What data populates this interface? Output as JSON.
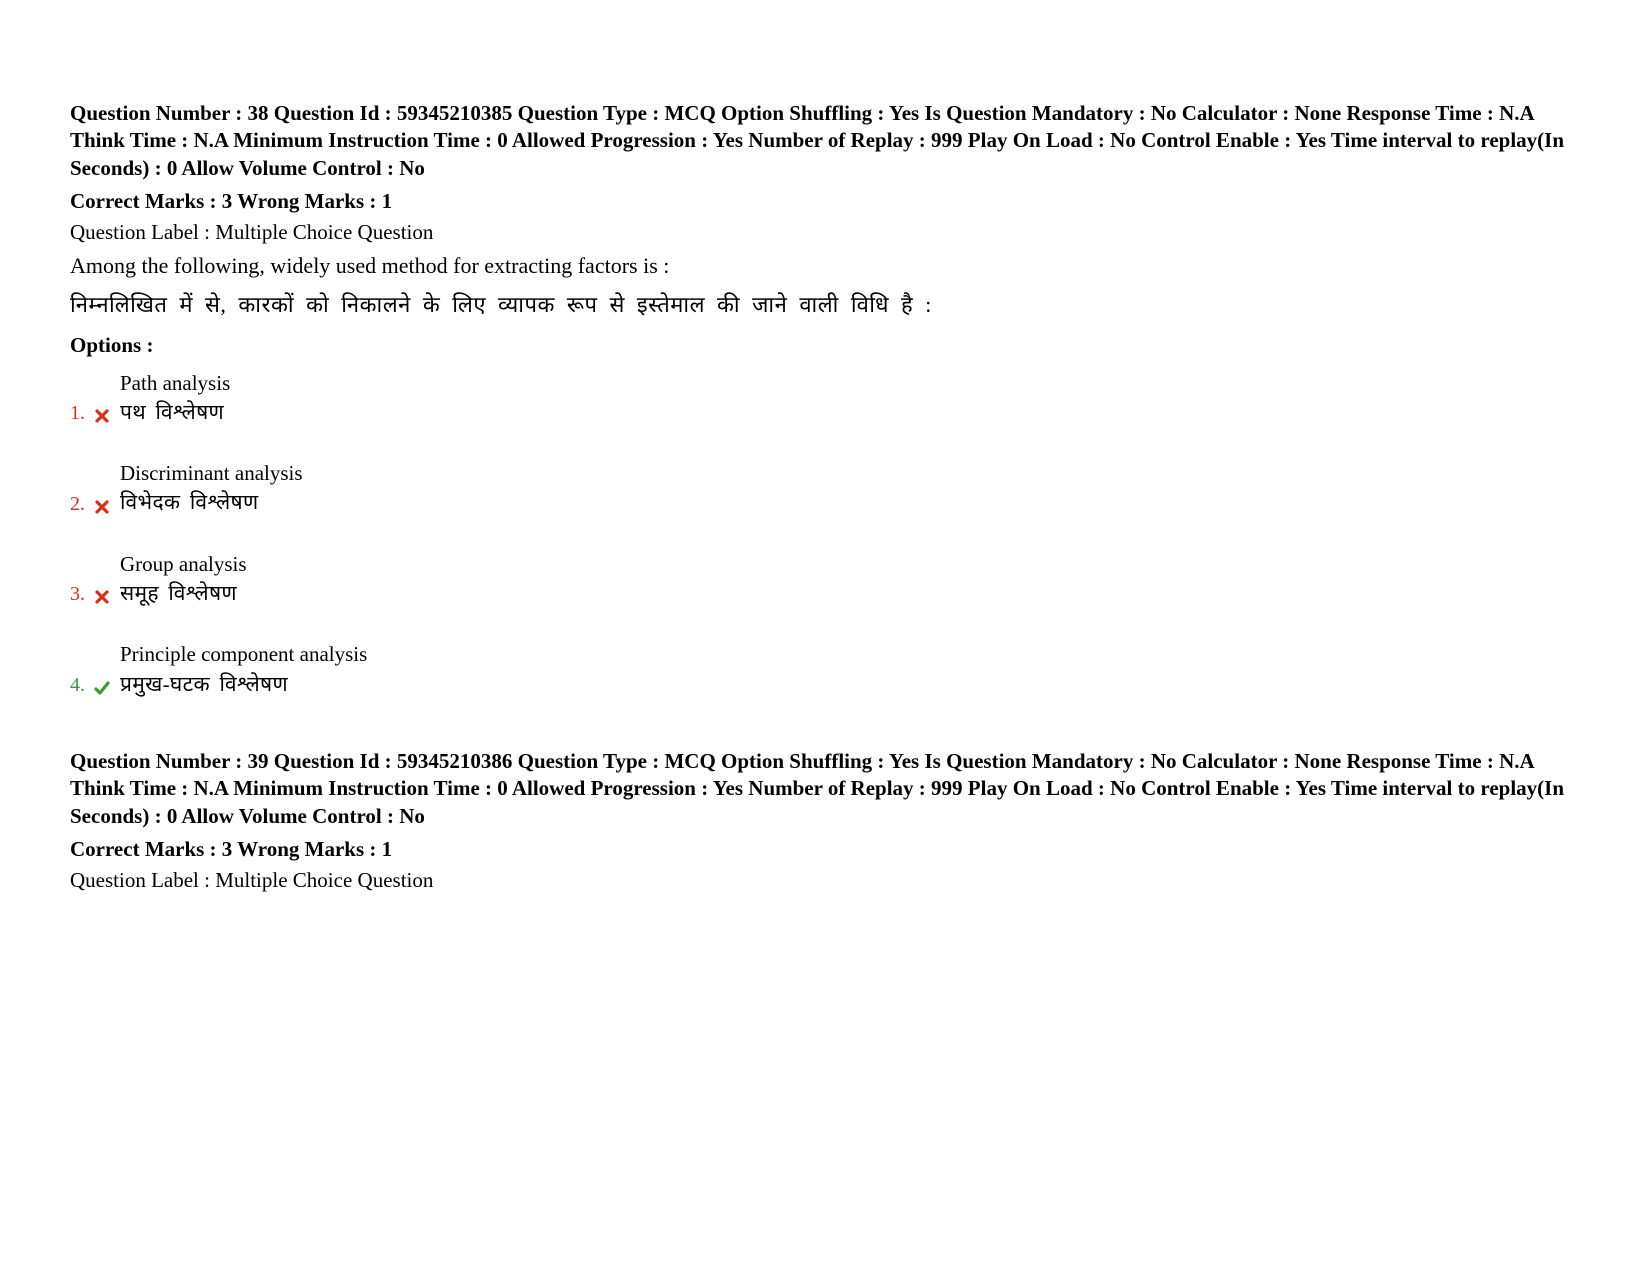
{
  "colors": {
    "wrong_number": "#d9301a",
    "correct_number": "#3d9b35",
    "cross_icon": "#d9301a",
    "check_icon": "#3d9b35",
    "text": "#000000",
    "background": "#ffffff"
  },
  "questions": [
    {
      "meta_text": "Question Number : 38 Question Id : 59345210385 Question Type : MCQ Option Shuffling : Yes Is Question Mandatory : No Calculator : None Response Time : N.A Think Time : N.A Minimum Instruction Time : 0 Allowed Progression : Yes Number of Replay : 999 Play On Load : No Control Enable : Yes Time interval to replay(In Seconds) : 0 Allow Volume Control : No",
      "marks_text": "Correct Marks : 3 Wrong Marks : 1",
      "label_text": "Question Label : Multiple Choice Question",
      "question_en": "Among the following, widely used method for extracting factors is :",
      "question_hi": "निम्नलिखित में से, कारकों को निकालने के लिए व्यापक रूप से इस्तेमाल की जाने वाली विधि है :",
      "options_header": "Options :",
      "options": [
        {
          "num": "1.",
          "correct": false,
          "en": "Path analysis",
          "hi": "पथ विश्लेषण"
        },
        {
          "num": "2.",
          "correct": false,
          "en": "Discriminant analysis",
          "hi": "विभेदक विश्लेषण"
        },
        {
          "num": "3.",
          "correct": false,
          "en": "Group analysis",
          "hi": "समूह विश्लेषण"
        },
        {
          "num": "4.",
          "correct": true,
          "en": "Principle component analysis",
          "hi": "प्रमुख-घटक विश्लेषण"
        }
      ]
    },
    {
      "meta_text": "Question Number : 39 Question Id : 59345210386 Question Type : MCQ Option Shuffling : Yes Is Question Mandatory : No Calculator : None Response Time : N.A Think Time : N.A Minimum Instruction Time : 0 Allowed Progression : Yes Number of Replay : 999 Play On Load : No Control Enable : Yes Time interval to replay(In Seconds) : 0 Allow Volume Control : No",
      "marks_text": "Correct Marks : 3 Wrong Marks : 1",
      "label_text": "Question Label : Multiple Choice Question",
      "question_en": "",
      "question_hi": "",
      "options_header": "",
      "options": []
    }
  ]
}
